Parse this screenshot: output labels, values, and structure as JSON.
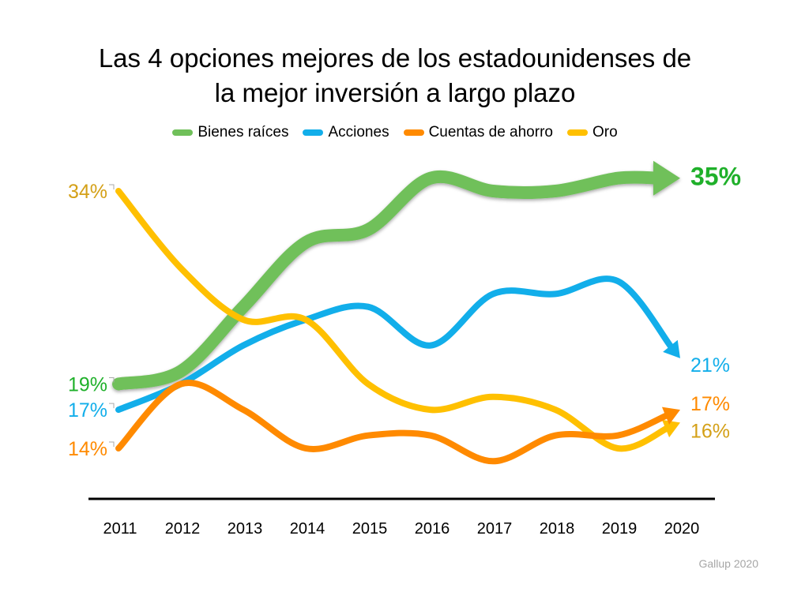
{
  "chart_data": {
    "type": "line",
    "title": "Las 4 opciones mejores de los estadounidenses de la mejor inversión a largo plazo",
    "title_lines": [
      "Las 4 opciones mejores de los estadounidenses de",
      "la mejor inversión a largo plazo"
    ],
    "x": [
      "2011",
      "2012",
      "2013",
      "2014",
      "2015",
      "2016",
      "2017",
      "2018",
      "2019",
      "2020"
    ],
    "series": [
      {
        "name": "Bienes raíces",
        "color": "#70c05a",
        "label_color": "#1fb02a",
        "values": [
          19,
          20,
          25,
          30,
          31,
          35,
          34,
          34,
          35,
          35
        ],
        "start_label": "19%",
        "end_label": "35%"
      },
      {
        "name": "Acciones",
        "color": "#12aeea",
        "label_color": "#12aeea",
        "values": [
          17,
          19,
          22,
          24,
          25,
          22,
          26,
          26,
          27,
          21
        ],
        "start_label": "17%",
        "end_label": "21%"
      },
      {
        "name": "Cuentas de ahorro",
        "color": "#ff8a00",
        "label_color": "#ff8a00",
        "values": [
          14,
          19,
          17,
          14,
          15,
          15,
          13,
          15,
          15,
          17
        ],
        "start_label": "14%",
        "end_label": "17%"
      },
      {
        "name": "Oro",
        "color": "#ffc000",
        "label_color": "#d4a017",
        "values": [
          34,
          28,
          24,
          24,
          19,
          17,
          18,
          17,
          14,
          16
        ],
        "start_label": "34%",
        "end_label": "16%"
      }
    ],
    "legend_position": "top",
    "grid": false,
    "ylim": [
      12,
      36
    ]
  },
  "source": "Gallup 2020"
}
